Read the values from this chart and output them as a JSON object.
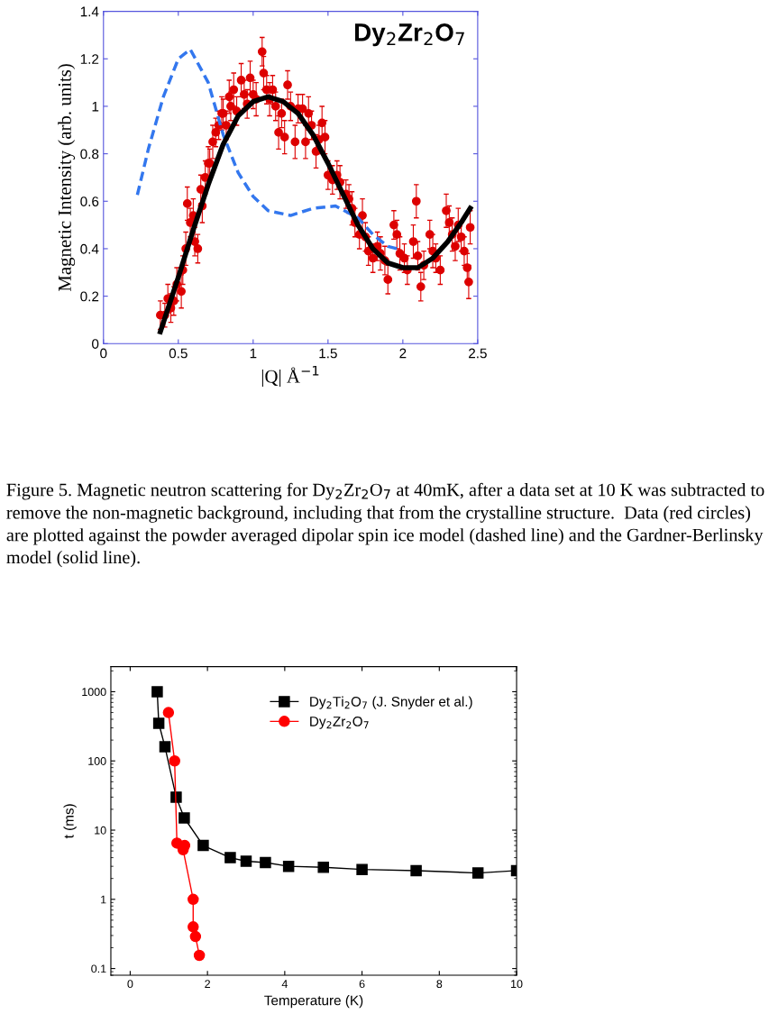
{
  "chart_data": [
    {
      "type": "scatter",
      "xlabel": "|Q| Å$^{−1}$",
      "ylabel": "Magnetic Intensity (arb. units)",
      "xlim": [
        0,
        2.5
      ],
      "ylim": [
        0,
        1.4
      ],
      "xticks": [
        0,
        0.5,
        1,
        1.5,
        2,
        2.5
      ],
      "yticks": [
        0,
        0.2,
        0.4,
        0.6,
        0.8,
        1,
        1.2,
        1.4
      ],
      "grid": false,
      "legend": false,
      "annotations": [
        "Dy$_{2}$Zr$_{2}$O$_{7}$",
        "Figure 5. Magnetic neutron scattering for Dy$_{2}$Zr$_{2}$O$_{7}$ at 40mK, after a data set at 10 K was subtracted to remove the non-magnetic background, including that from the crystalline structure.  Data (red circles) are plotted against the powder averaged dipolar spin ice model (dashed line) and the Gardner-Berlinsky model (solid line)."
      ],
      "series": [
        {
          "type": "line",
          "color": "#3377ee",
          "line_style": "dashed",
          "marker": "none",
          "x": [
            0.22,
            0.3,
            0.4,
            0.5,
            0.58,
            0.7,
            0.8,
            0.9,
            1.0,
            1.1,
            1.25,
            1.4,
            1.55,
            1.7,
            1.8,
            1.9,
            1.96
          ],
          "values": [
            0.61,
            0.82,
            1.04,
            1.2,
            1.24,
            1.1,
            0.88,
            0.72,
            0.62,
            0.56,
            0.54,
            0.57,
            0.58,
            0.53,
            0.46,
            0.41,
            0.4
          ]
        },
        {
          "type": "scatter",
          "color": "#dd0000",
          "marker": "circle",
          "x": [
            0.38,
            0.41,
            0.43,
            0.45,
            0.47,
            0.49,
            0.52,
            0.53,
            0.55,
            0.56,
            0.58,
            0.6,
            0.61,
            0.63,
            0.65,
            0.66,
            0.68,
            0.7,
            0.71,
            0.73,
            0.75,
            0.77,
            0.79,
            0.8,
            0.82,
            0.84,
            0.85,
            0.87,
            0.89,
            0.92,
            0.94,
            0.96,
            0.98,
            1.0,
            1.02,
            1.06,
            1.07,
            1.09,
            1.11,
            1.13,
            1.15,
            1.17,
            1.19,
            1.21,
            1.23,
            1.25,
            1.28,
            1.3,
            1.33,
            1.35,
            1.37,
            1.39,
            1.42,
            1.44,
            1.46,
            1.48,
            1.5,
            1.53,
            1.56,
            1.58,
            1.62,
            1.64,
            1.66,
            1.68,
            1.71,
            1.73,
            1.75,
            1.77,
            1.8,
            1.83,
            1.85,
            1.88,
            1.9,
            1.94,
            1.96,
            1.98,
            2.01,
            2.03,
            2.07,
            2.09,
            2.1,
            2.12,
            2.14,
            2.18,
            2.2,
            2.22,
            2.25,
            2.29,
            2.31,
            2.33,
            2.35,
            2.37,
            2.39,
            2.41,
            2.43,
            2.44,
            2.45
          ],
          "values": [
            0.12,
            0.12,
            0.19,
            0.15,
            0.18,
            0.25,
            0.22,
            0.31,
            0.4,
            0.59,
            0.51,
            0.54,
            0.43,
            0.4,
            0.65,
            0.58,
            0.7,
            0.76,
            0.76,
            0.85,
            0.89,
            0.92,
            0.97,
            0.97,
            0.92,
            1.04,
            1.0,
            1.07,
            0.98,
            1.11,
            1.05,
            1.01,
            1.12,
            1.05,
            1.03,
            1.23,
            1.14,
            1.07,
            1.03,
            1.07,
            1.0,
            0.89,
            0.97,
            0.87,
            1.09,
            1.0,
            0.85,
            0.99,
            0.99,
            0.85,
            0.97,
            0.92,
            0.81,
            0.86,
            0.93,
            0.87,
            0.71,
            0.69,
            0.71,
            0.68,
            0.63,
            0.61,
            0.57,
            0.51,
            0.46,
            0.54,
            0.45,
            0.39,
            0.36,
            0.41,
            0.38,
            0.35,
            0.27,
            0.5,
            0.46,
            0.38,
            0.36,
            0.31,
            0.43,
            0.6,
            0.37,
            0.24,
            0.33,
            0.46,
            0.39,
            0.36,
            0.31,
            0.56,
            0.51,
            0.46,
            0.41,
            0.5,
            0.45,
            0.39,
            0.32,
            0.26,
            0.49
          ],
          "errors": [
            0.06,
            0.05,
            0.06,
            0.06,
            0.06,
            0.07,
            0.07,
            0.06,
            0.07,
            0.07,
            0.06,
            0.07,
            0.06,
            0.06,
            0.06,
            0.07,
            0.07,
            0.07,
            0.06,
            0.07,
            0.06,
            0.06,
            0.07,
            0.06,
            0.06,
            0.07,
            0.06,
            0.07,
            0.06,
            0.07,
            0.06,
            0.06,
            0.07,
            0.06,
            0.07,
            0.06,
            0.07,
            0.06,
            0.07,
            0.06,
            0.06,
            0.07,
            0.06,
            0.07,
            0.06,
            0.06,
            0.07,
            0.06,
            0.06,
            0.07,
            0.07,
            0.06,
            0.07,
            0.06,
            0.07,
            0.07,
            0.06,
            0.06,
            0.06,
            0.07,
            0.06,
            0.06,
            0.07,
            0.06,
            0.06,
            0.07,
            0.06,
            0.06,
            0.06,
            0.06,
            0.07,
            0.06,
            0.06,
            0.06,
            0.06,
            0.07,
            0.06,
            0.06,
            0.07,
            0.07,
            0.06,
            0.06,
            0.06,
            0.06,
            0.07,
            0.06,
            0.06,
            0.07,
            0.07,
            0.07,
            0.06,
            0.07,
            0.06,
            0.06,
            0.06,
            0.07,
            0.07
          ]
        },
        {
          "type": "line",
          "color": "#000000",
          "line_style": "solid",
          "marker": "none",
          "x": [
            0.38,
            0.5,
            0.6,
            0.7,
            0.8,
            0.9,
            1.0,
            1.1,
            1.2,
            1.3,
            1.4,
            1.5,
            1.6,
            1.7,
            1.8,
            1.9,
            2.0,
            2.1,
            2.2,
            2.3,
            2.4,
            2.45
          ],
          "values": [
            0.05,
            0.28,
            0.48,
            0.67,
            0.84,
            0.96,
            1.02,
            1.04,
            1.02,
            0.97,
            0.88,
            0.76,
            0.63,
            0.5,
            0.4,
            0.34,
            0.32,
            0.32,
            0.36,
            0.43,
            0.52,
            0.57
          ]
        }
      ]
    },
    {
      "type": "line",
      "xlabel": "Temperature (K)",
      "ylabel": "t (ms)",
      "log": "y",
      "xlim": [
        -0.5,
        10
      ],
      "ylim": [
        0.08,
        2300
      ],
      "xticks": [
        0,
        2,
        4,
        6,
        8,
        10
      ],
      "yticks": [
        0.1,
        1,
        10,
        100,
        1000
      ],
      "grid": false,
      "legend": "top right",
      "line_style": "solid",
      "series": [
        {
          "name": "Dy$_{2}$Ti$_{2}$O$_{7}$ (J. Snyder et al.)",
          "color": "#000000",
          "marker": "square",
          "x": [
            0.7,
            0.74,
            0.9,
            1.19,
            1.4,
            1.89,
            2.59,
            3.0,
            3.5,
            4.1,
            5.0,
            6.0,
            7.4,
            9.0,
            10.0
          ],
          "values": [
            1000,
            350,
            160,
            30,
            15,
            6,
            4,
            3.55,
            3.4,
            3.0,
            2.9,
            2.7,
            2.6,
            2.4,
            2.6
          ]
        },
        {
          "name": "Dy$_{2}$Zr$_{2}$O$_{7}$",
          "color": "#ff0000",
          "marker": "circle",
          "x": [
            0.99,
            1.15,
            1.21,
            1.41,
            1.37,
            1.63,
            1.63,
            1.69,
            1.79
          ],
          "values": [
            500,
            100,
            6.5,
            6.0,
            5.2,
            1,
            0.4,
            0.29,
            0.155
          ]
        }
      ]
    }
  ]
}
